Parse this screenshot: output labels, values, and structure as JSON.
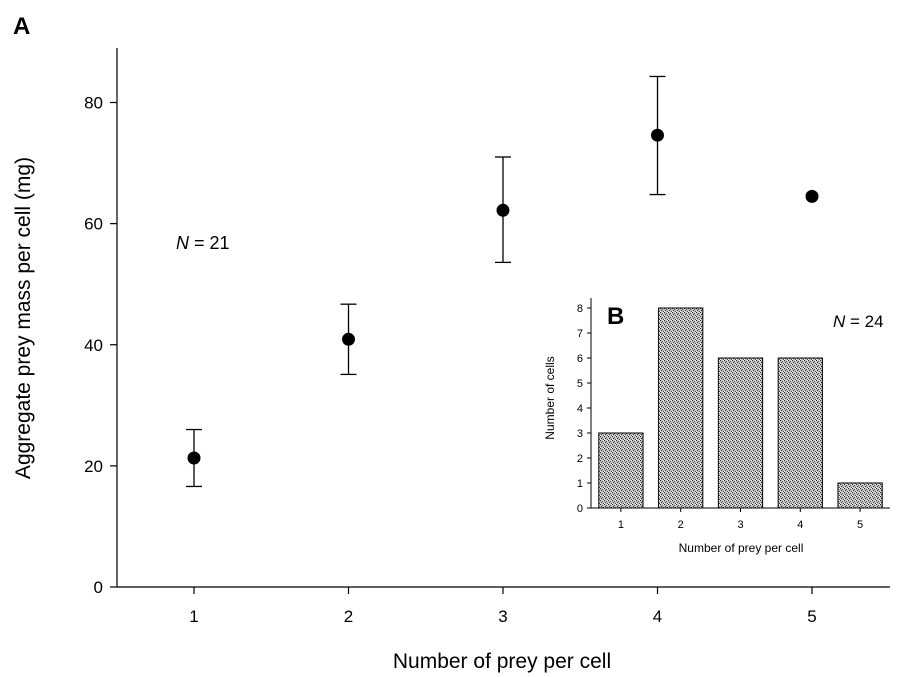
{
  "chart_data": [
    {
      "type": "scatter",
      "panel_label": "A",
      "xlabel": "Number of prey per cell",
      "ylabel": "Aggregate prey mass per cell (mg)",
      "x_ticks": [
        "1",
        "2",
        "3",
        "4",
        "5"
      ],
      "y_ticks": [
        "0",
        "20",
        "40",
        "60",
        "80"
      ],
      "xlim": [
        0.5,
        5.5
      ],
      "ylim": [
        0,
        89
      ],
      "annotation": {
        "italic": "N",
        "rest": " = 21"
      },
      "points": [
        {
          "x": 1,
          "y": 21.3,
          "lo": 16.6,
          "hi": 26.0
        },
        {
          "x": 2,
          "y": 40.9,
          "lo": 35.1,
          "hi": 46.7
        },
        {
          "x": 3,
          "y": 62.2,
          "lo": 53.6,
          "hi": 71.0
        },
        {
          "x": 4,
          "y": 74.6,
          "lo": 64.8,
          "hi": 84.3
        },
        {
          "x": 5,
          "y": 64.5
        }
      ]
    },
    {
      "type": "bar",
      "panel_label": "B",
      "xlabel": "Number of prey per cell",
      "ylabel": "Number of cells",
      "categories": [
        "1",
        "2",
        "3",
        "4",
        "5"
      ],
      "values": [
        3,
        8,
        6,
        6,
        1
      ],
      "y_ticks": [
        "0",
        "1",
        "2",
        "3",
        "4",
        "5",
        "6",
        "7",
        "8"
      ],
      "ylim": [
        0,
        8.4
      ],
      "annotation": {
        "italic": "N",
        "rest": " = 24"
      }
    }
  ]
}
